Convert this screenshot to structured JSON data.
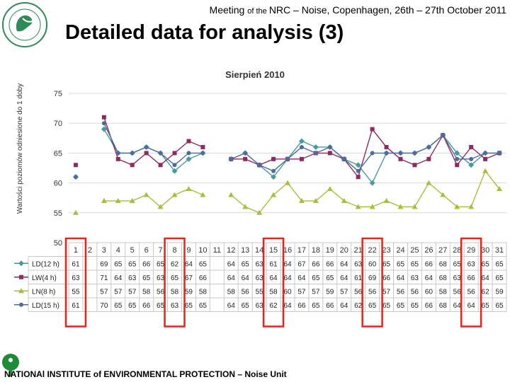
{
  "header": {
    "meeting_a": "Meeting ",
    "meeting_b": "of the ",
    "meeting_c": "NRC – Noise, Copenhagen, 26th – 27th October 2011"
  },
  "slide_title": "Detailed data for analysis (3)",
  "footer": {
    "text": "NATIONAl INSTITUTE of ENVIRONMENTAL PROTECTION – Noise Unit"
  },
  "colors": {
    "highlight": "#e8231c",
    "grid": "#d9d9d9"
  },
  "chart_data": {
    "type": "line",
    "title": "Sierpień 2010",
    "ylabel": "Wartości poziomów odniesione do 1 doby",
    "xlabel": "",
    "ylim": [
      50,
      75
    ],
    "yticks": [
      50,
      55,
      60,
      65,
      70,
      75
    ],
    "grid": true,
    "categories": [
      "1",
      "2",
      "3",
      "4",
      "5",
      "6",
      "7",
      "8",
      "9",
      "10",
      "11",
      "12",
      "13",
      "14",
      "15",
      "16",
      "17",
      "18",
      "19",
      "20",
      "21",
      "22",
      "23",
      "24",
      "25",
      "26",
      "27",
      "28",
      "29",
      "30",
      "31"
    ],
    "highlighted_days": [
      "1",
      "8",
      "15",
      "22",
      "29"
    ],
    "series": [
      {
        "name": "LD(12 h)",
        "color": "#4a9a9a",
        "marker": "diamond",
        "values": [
          61,
          null,
          69,
          65,
          65,
          66,
          65,
          62,
          64,
          65,
          null,
          64,
          65,
          63,
          61,
          64,
          67,
          66,
          66,
          64,
          63,
          60,
          65,
          65,
          65,
          66,
          68,
          65,
          63,
          65,
          65
        ]
      },
      {
        "name": "LW(4 h)",
        "color": "#8e2a5e",
        "marker": "square",
        "values": [
          63,
          null,
          71,
          64,
          63,
          65,
          63,
          65,
          67,
          66,
          null,
          64,
          64,
          63,
          64,
          64,
          64,
          65,
          65,
          64,
          61,
          69,
          66,
          64,
          63,
          64,
          68,
          63,
          66,
          64,
          65
        ]
      },
      {
        "name": "LN(8 h)",
        "color": "#a6bf3a",
        "marker": "triangle",
        "values": [
          55,
          null,
          57,
          57,
          57,
          58,
          56,
          58,
          59,
          58,
          null,
          58,
          56,
          55,
          58,
          60,
          57,
          57,
          59,
          57,
          56,
          56,
          57,
          56,
          56,
          60,
          58,
          56,
          56,
          62,
          59
        ]
      },
      {
        "name": "LD(15 h)",
        "color": "#4f6b9a",
        "marker": "circle",
        "values": [
          61,
          null,
          70,
          65,
          65,
          66,
          65,
          63,
          65,
          65,
          null,
          64,
          65,
          63,
          62,
          64,
          66,
          65,
          66,
          64,
          62,
          65,
          65,
          65,
          65,
          66,
          68,
          64,
          64,
          65,
          65
        ]
      }
    ]
  }
}
